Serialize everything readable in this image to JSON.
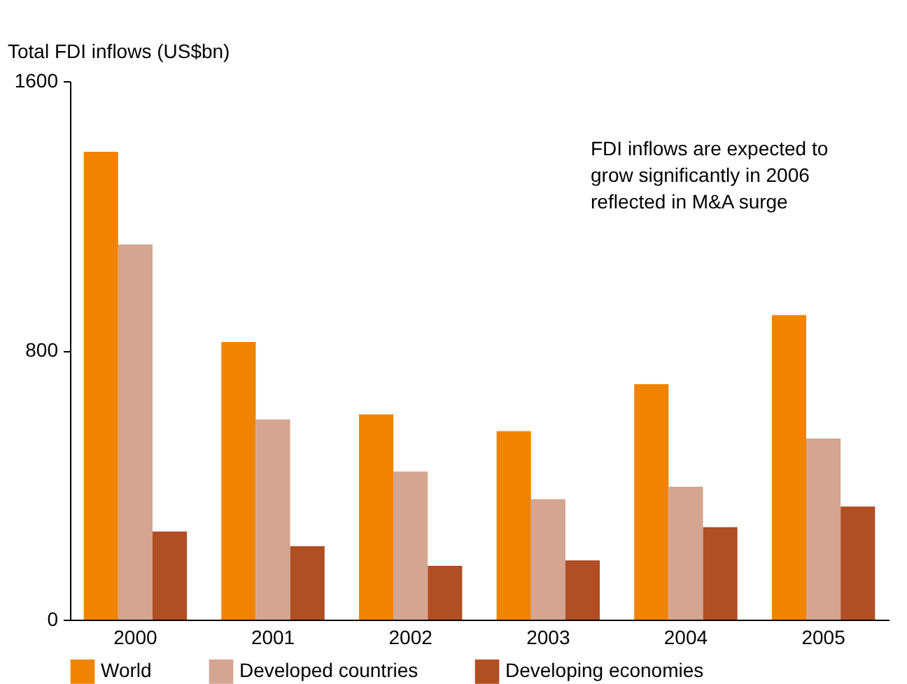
{
  "chart_data": {
    "type": "bar",
    "ylabel": "Total FDI inflows (US$bn)",
    "categories": [
      "2000",
      "2001",
      "2002",
      "2003",
      "2004",
      "2005"
    ],
    "series": [
      {
        "name": "World",
        "color": "#f08400",
        "values": [
          1390,
          825,
          610,
          560,
          700,
          905
        ]
      },
      {
        "name": "Developed countries",
        "color": "#d4a590",
        "values": [
          1115,
          595,
          440,
          358,
          395,
          538
        ]
      },
      {
        "name": "Developing economies",
        "color": "#b04e24",
        "values": [
          262,
          218,
          160,
          176,
          275,
          336
        ]
      }
    ],
    "ylim": [
      0,
      1600
    ],
    "yticks": [
      0,
      800,
      1600
    ],
    "grid": false,
    "legend": "bottom",
    "annotations": [
      "FDI inflows are expected to grow significantly in 2006 reflected in M&A surge"
    ]
  }
}
